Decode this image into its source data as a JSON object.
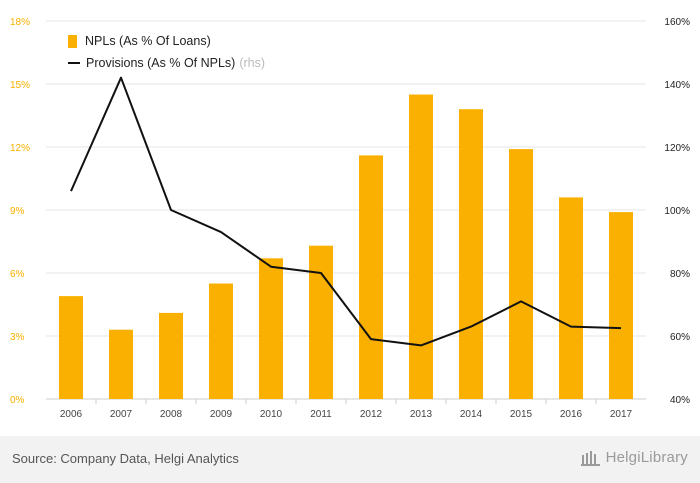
{
  "chart_data": {
    "type": "bar",
    "categories": [
      "2006",
      "2007",
      "2008",
      "2009",
      "2010",
      "2011",
      "2012",
      "2013",
      "2014",
      "2015",
      "2016",
      "2017"
    ],
    "series": [
      {
        "name": "NPLs (As % Of Loans)",
        "type": "bar",
        "axis": "left",
        "color": "#F9B000",
        "values": [
          4.9,
          3.3,
          4.1,
          5.5,
          6.7,
          7.3,
          11.6,
          14.5,
          13.8,
          11.9,
          9.6,
          8.9
        ]
      },
      {
        "name": "Provisions (As % Of NPLs)",
        "name_suffix": "(rhs)",
        "type": "line",
        "axis": "right",
        "color": "#111111",
        "values": [
          106,
          142,
          100,
          93,
          82,
          80,
          59,
          57,
          63,
          71,
          63,
          62.5
        ]
      }
    ],
    "y_left": {
      "min": 0,
      "max": 18,
      "ticks": [
        "0%",
        "3%",
        "6%",
        "9%",
        "12%",
        "15%",
        "18%"
      ],
      "tick_values": [
        0,
        3,
        6,
        9,
        12,
        15,
        18
      ],
      "color": "#F9B000"
    },
    "y_right": {
      "min": 40,
      "max": 160,
      "ticks": [
        "40%",
        "60%",
        "80%",
        "100%",
        "120%",
        "140%",
        "160%"
      ],
      "tick_values": [
        40,
        60,
        80,
        100,
        120,
        140,
        160
      ]
    },
    "grid": true,
    "legend_position": "top-left"
  },
  "footer": {
    "source": "Source: Company Data, Helgi Analytics",
    "brand": "HelgiLibrary"
  }
}
